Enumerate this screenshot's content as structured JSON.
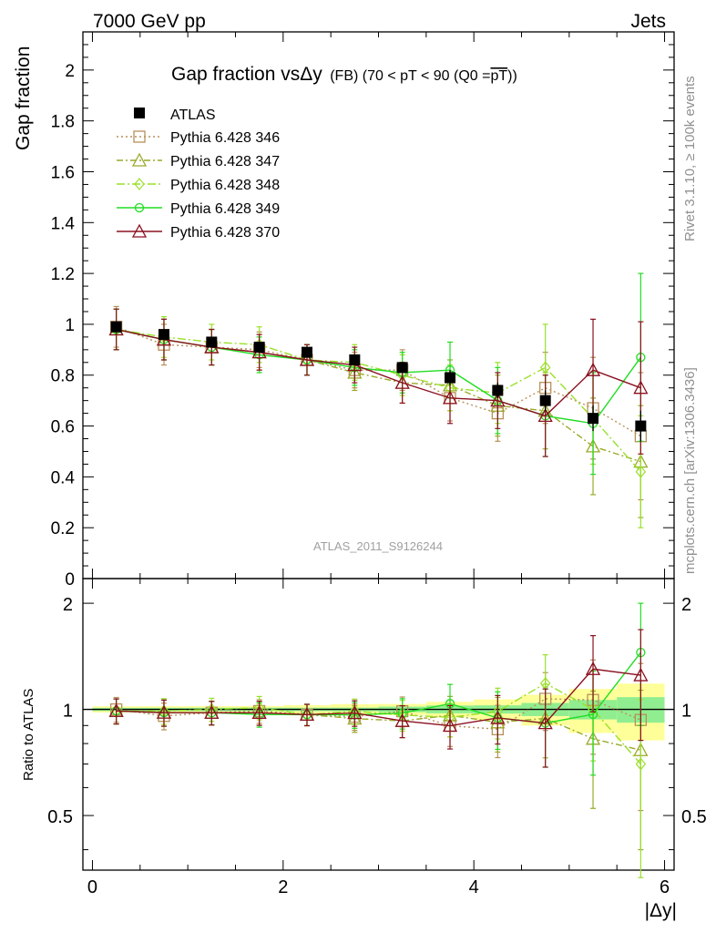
{
  "header": {
    "left": "7000 GeV pp",
    "right": "Jets"
  },
  "side_labels": {
    "top": "Rivet 3.1.10, ≥ 100k events",
    "bottom": "mcplots.cern.ch [arXiv:1306.3436]"
  },
  "chart_data": {
    "type": "scatter",
    "title_parts": {
      "main": "Gap fraction vs",
      "delta": "Δ",
      "y": "y",
      "sub": "(FB) (70 < pT <  90 (Q0 =",
      "pt": "pT",
      "close": "))"
    },
    "watermark": "ATLAS_2011_S9126244",
    "xlabel": "|Δy|",
    "ylabel_main": "Gap fraction",
    "ylabel_ratio": "Ratio to ATLAS",
    "xlim": [
      -0.1,
      6.1
    ],
    "ylim_main": [
      0,
      2.15
    ],
    "ylim_ratio": [
      0.35,
      2.35
    ],
    "x_ticks": [
      "0",
      "2",
      "4",
      "6"
    ],
    "y_ticks_main": [
      "0",
      "0.2",
      "0.4",
      "0.6",
      "0.8",
      "1",
      "1.2",
      "1.4",
      "1.6",
      "1.8",
      "2"
    ],
    "y_ticks_ratio": [
      "0.5",
      "1",
      "2"
    ],
    "x": [
      0.25,
      0.75,
      1.25,
      1.75,
      2.25,
      2.75,
      3.25,
      3.75,
      4.25,
      4.75,
      5.25,
      5.75
    ],
    "data": {
      "name": "ATLAS",
      "y": [
        0.99,
        0.96,
        0.93,
        0.91,
        0.89,
        0.86,
        0.83,
        0.79,
        0.74,
        0.7,
        0.63,
        0.6
      ],
      "err": [
        0.02,
        0.02,
        0.02,
        0.02,
        0.02,
        0.02,
        0.02,
        0.03,
        0.03,
        0.04,
        0.05,
        0.06
      ]
    },
    "series": [
      {
        "name": "Pythia 6.428 346",
        "color": "#b8905a",
        "marker": "square",
        "dash": "2,3",
        "y": [
          0.99,
          0.92,
          0.91,
          0.9,
          0.86,
          0.82,
          0.82,
          0.71,
          0.65,
          0.75,
          0.67,
          0.56
        ],
        "err": [
          0.08,
          0.08,
          0.07,
          0.07,
          0.06,
          0.07,
          0.08,
          0.09,
          0.11,
          0.14,
          0.2,
          0.25
        ]
      },
      {
        "name": "Pythia 6.428 347",
        "color": "#9aaa2a",
        "marker": "triangle",
        "dash": "7,3,2,3",
        "y": [
          0.98,
          0.94,
          0.91,
          0.89,
          0.86,
          0.81,
          0.77,
          0.76,
          0.68,
          0.66,
          0.52,
          0.46
        ],
        "err": [
          0.08,
          0.08,
          0.07,
          0.07,
          0.06,
          0.07,
          0.08,
          0.1,
          0.12,
          0.15,
          0.19,
          0.22
        ]
      },
      {
        "name": "Pythia 6.428 348",
        "color": "#9ae02a",
        "marker": "diamond",
        "dash": "9,3,2,3",
        "y": [
          0.98,
          0.95,
          0.93,
          0.92,
          0.86,
          0.85,
          0.8,
          0.75,
          0.73,
          0.83,
          0.63,
          0.42
        ],
        "err": [
          0.08,
          0.08,
          0.07,
          0.07,
          0.06,
          0.07,
          0.08,
          0.09,
          0.12,
          0.17,
          0.18,
          0.22
        ]
      },
      {
        "name": "Pythia 6.428 349",
        "color": "#22dd22",
        "marker": "circle",
        "dash": "",
        "y": [
          0.98,
          0.94,
          0.91,
          0.88,
          0.86,
          0.83,
          0.81,
          0.82,
          0.7,
          0.64,
          0.61,
          0.87
        ],
        "err": [
          0.08,
          0.08,
          0.07,
          0.07,
          0.06,
          0.07,
          0.08,
          0.11,
          0.13,
          0.16,
          0.2,
          0.33
        ]
      },
      {
        "name": "Pythia 6.428 370",
        "color": "#8b1020",
        "marker": "triangle",
        "dash": "",
        "y": [
          0.98,
          0.94,
          0.91,
          0.89,
          0.86,
          0.84,
          0.77,
          0.71,
          0.7,
          0.64,
          0.82,
          0.75
        ],
        "err": [
          0.08,
          0.08,
          0.07,
          0.07,
          0.06,
          0.07,
          0.08,
          0.1,
          0.11,
          0.16,
          0.2,
          0.26
        ]
      }
    ],
    "band": {
      "stat_half_width": [
        0.01,
        0.01,
        0.01,
        0.01,
        0.01,
        0.01,
        0.015,
        0.02,
        0.02,
        0.03,
        0.04,
        0.05
      ],
      "total_half_width": [
        0.02,
        0.02,
        0.02,
        0.02,
        0.025,
        0.03,
        0.03,
        0.04,
        0.05,
        0.07,
        0.09,
        0.11
      ],
      "stat_color": "#90ee90",
      "total_color": "#ffff99"
    }
  }
}
